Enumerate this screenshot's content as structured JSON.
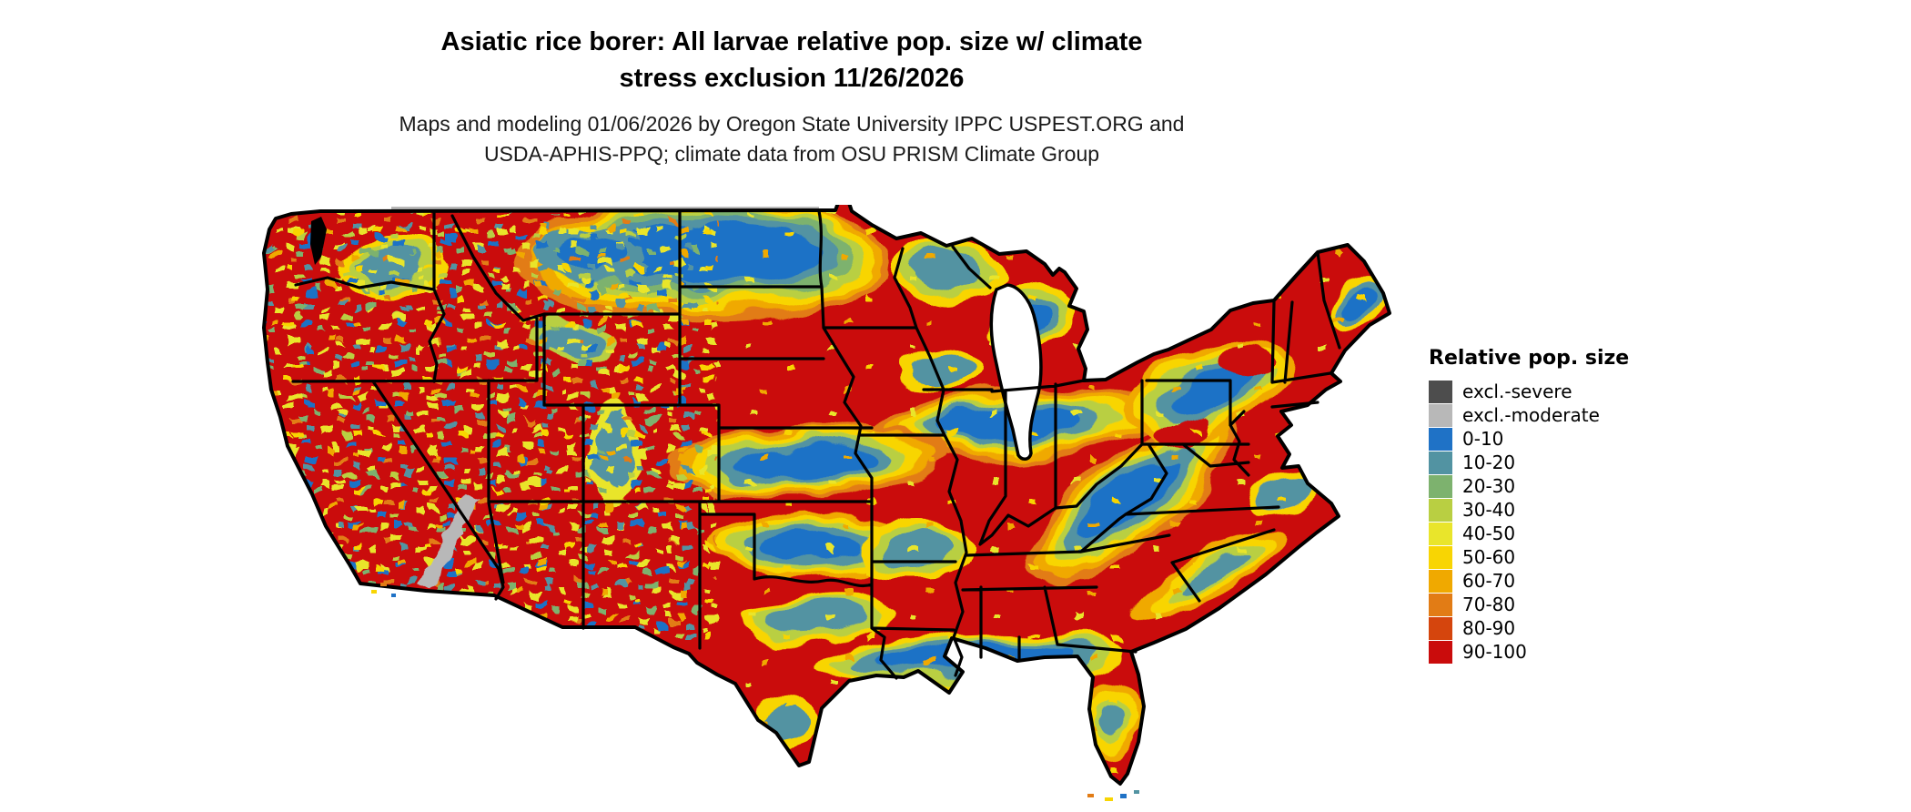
{
  "header": {
    "title_lines": [
      "Asiatic rice borer: All larvae relative pop. size w/ climate",
      "stress exclusion 11/26/2026"
    ],
    "subtitle_lines": [
      "Maps and modeling 01/06/2026 by Oregon State University IPPC USPEST.ORG and",
      "USDA-APHIS-PPQ; climate data from OSU PRISM Climate Group"
    ]
  },
  "legend": {
    "title": "Relative pop. size",
    "items": [
      {
        "label": "excl.-severe",
        "color": "#4d4d4d"
      },
      {
        "label": "excl.-moderate",
        "color": "#b8b8b8"
      },
      {
        "label": "0-10",
        "color": "#1f72c6"
      },
      {
        "label": "10-20",
        "color": "#5293a2"
      },
      {
        "label": "20-30",
        "color": "#7db26e"
      },
      {
        "label": "30-40",
        "color": "#b9cf42"
      },
      {
        "label": "40-50",
        "color": "#e9e52b"
      },
      {
        "label": "50-60",
        "color": "#f8d503"
      },
      {
        "label": "60-70",
        "color": "#f0a900"
      },
      {
        "label": "70-80",
        "color": "#e27c15"
      },
      {
        "label": "80-90",
        "color": "#d5450d"
      },
      {
        "label": "90-100",
        "color": "#ca0c0c"
      }
    ]
  },
  "palette": {
    "severe": "#4d4d4d",
    "moderate": "#b8b8b8",
    "v0": "#1f72c6",
    "v10": "#5293a2",
    "v20": "#7db26e",
    "v30": "#b9cf42",
    "v40": "#e9e52b",
    "v50": "#f8d503",
    "v60": "#f0a900",
    "v70": "#e27c15",
    "v80": "#d5450d",
    "v90": "#ca0c0c"
  },
  "map": {
    "region": "Contiguous United States",
    "base_color": "#ca0c0c",
    "water_color": "#ffffff",
    "border_color": "#000000"
  }
}
